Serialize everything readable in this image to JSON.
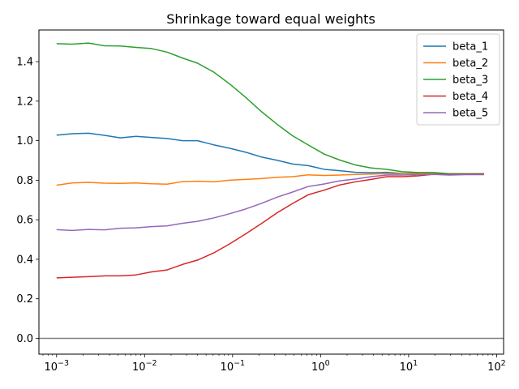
{
  "chart_data": {
    "type": "line",
    "title": "Shrinkage toward equal weights",
    "xlabel": "",
    "ylabel": "",
    "xscale": "log",
    "xlim": [
      0.00063,
      120
    ],
    "ylim": [
      -0.08,
      1.56
    ],
    "xticks": [
      {
        "value": 0.001,
        "base": "10",
        "exp": "−3"
      },
      {
        "value": 0.01,
        "base": "10",
        "exp": "−2"
      },
      {
        "value": 0.1,
        "base": "10",
        "exp": "−1"
      },
      {
        "value": 1,
        "base": "10",
        "exp": "0"
      },
      {
        "value": 10,
        "base": "10",
        "exp": "1"
      },
      {
        "value": 100,
        "base": "10",
        "exp": "2"
      }
    ],
    "yticks": [
      {
        "value": 0.0,
        "label": "0.0"
      },
      {
        "value": 0.2,
        "label": "0.2"
      },
      {
        "value": 0.4,
        "label": "0.4"
      },
      {
        "value": 0.6,
        "label": "0.6"
      },
      {
        "value": 0.8,
        "label": "0.8"
      },
      {
        "value": 1.0,
        "label": "1.0"
      },
      {
        "value": 1.2,
        "label": "1.2"
      },
      {
        "value": 1.4,
        "label": "1.4"
      }
    ],
    "hline": {
      "y": 0.0,
      "color": "#808080"
    },
    "legend": "top-right",
    "grid": false,
    "x": [
      0.001,
      0.0015,
      0.0023,
      0.0035,
      0.0053,
      0.008,
      0.012,
      0.018,
      0.027,
      0.04,
      0.061,
      0.092,
      0.14,
      0.21,
      0.32,
      0.48,
      0.72,
      1.1,
      1.65,
      2.5,
      3.75,
      5.65,
      8.5,
      12.8,
      19.3,
      29,
      44,
      72
    ],
    "series": [
      {
        "name": "beta_1",
        "color": "#1f77b4",
        "values": [
          1.028,
          1.035,
          1.038,
          1.027,
          1.014,
          1.022,
          1.016,
          1.011,
          1.0,
          1.0,
          0.979,
          0.962,
          0.942,
          0.918,
          0.901,
          0.882,
          0.874,
          0.855,
          0.848,
          0.84,
          0.838,
          0.84,
          0.834,
          0.835,
          0.832,
          0.83,
          0.831,
          0.831
        ]
      },
      {
        "name": "beta_2",
        "color": "#ff7f0e",
        "values": [
          0.775,
          0.786,
          0.789,
          0.785,
          0.784,
          0.786,
          0.782,
          0.78,
          0.793,
          0.795,
          0.792,
          0.8,
          0.804,
          0.808,
          0.815,
          0.818,
          0.827,
          0.824,
          0.826,
          0.829,
          0.831,
          0.833,
          0.832,
          0.832,
          0.832,
          0.832,
          0.832,
          0.832
        ]
      },
      {
        "name": "beta_3",
        "color": "#2ca02c",
        "values": [
          1.491,
          1.488,
          1.494,
          1.48,
          1.479,
          1.472,
          1.466,
          1.448,
          1.418,
          1.392,
          1.347,
          1.288,
          1.22,
          1.149,
          1.083,
          1.025,
          0.979,
          0.932,
          0.902,
          0.877,
          0.862,
          0.855,
          0.843,
          0.839,
          0.839,
          0.833,
          0.833,
          0.833
        ]
      },
      {
        "name": "beta_4",
        "color": "#d62728",
        "values": [
          0.306,
          0.309,
          0.312,
          0.316,
          0.316,
          0.321,
          0.336,
          0.346,
          0.374,
          0.396,
          0.432,
          0.477,
          0.528,
          0.579,
          0.635,
          0.682,
          0.726,
          0.75,
          0.776,
          0.792,
          0.804,
          0.818,
          0.818,
          0.822,
          0.83,
          0.828,
          0.83,
          0.83
        ]
      },
      {
        "name": "beta_5",
        "color": "#9467bd",
        "values": [
          0.55,
          0.546,
          0.551,
          0.549,
          0.557,
          0.559,
          0.565,
          0.569,
          0.582,
          0.592,
          0.609,
          0.63,
          0.654,
          0.682,
          0.714,
          0.74,
          0.768,
          0.781,
          0.797,
          0.806,
          0.818,
          0.826,
          0.826,
          0.828,
          0.829,
          0.826,
          0.828,
          0.828
        ]
      }
    ]
  }
}
